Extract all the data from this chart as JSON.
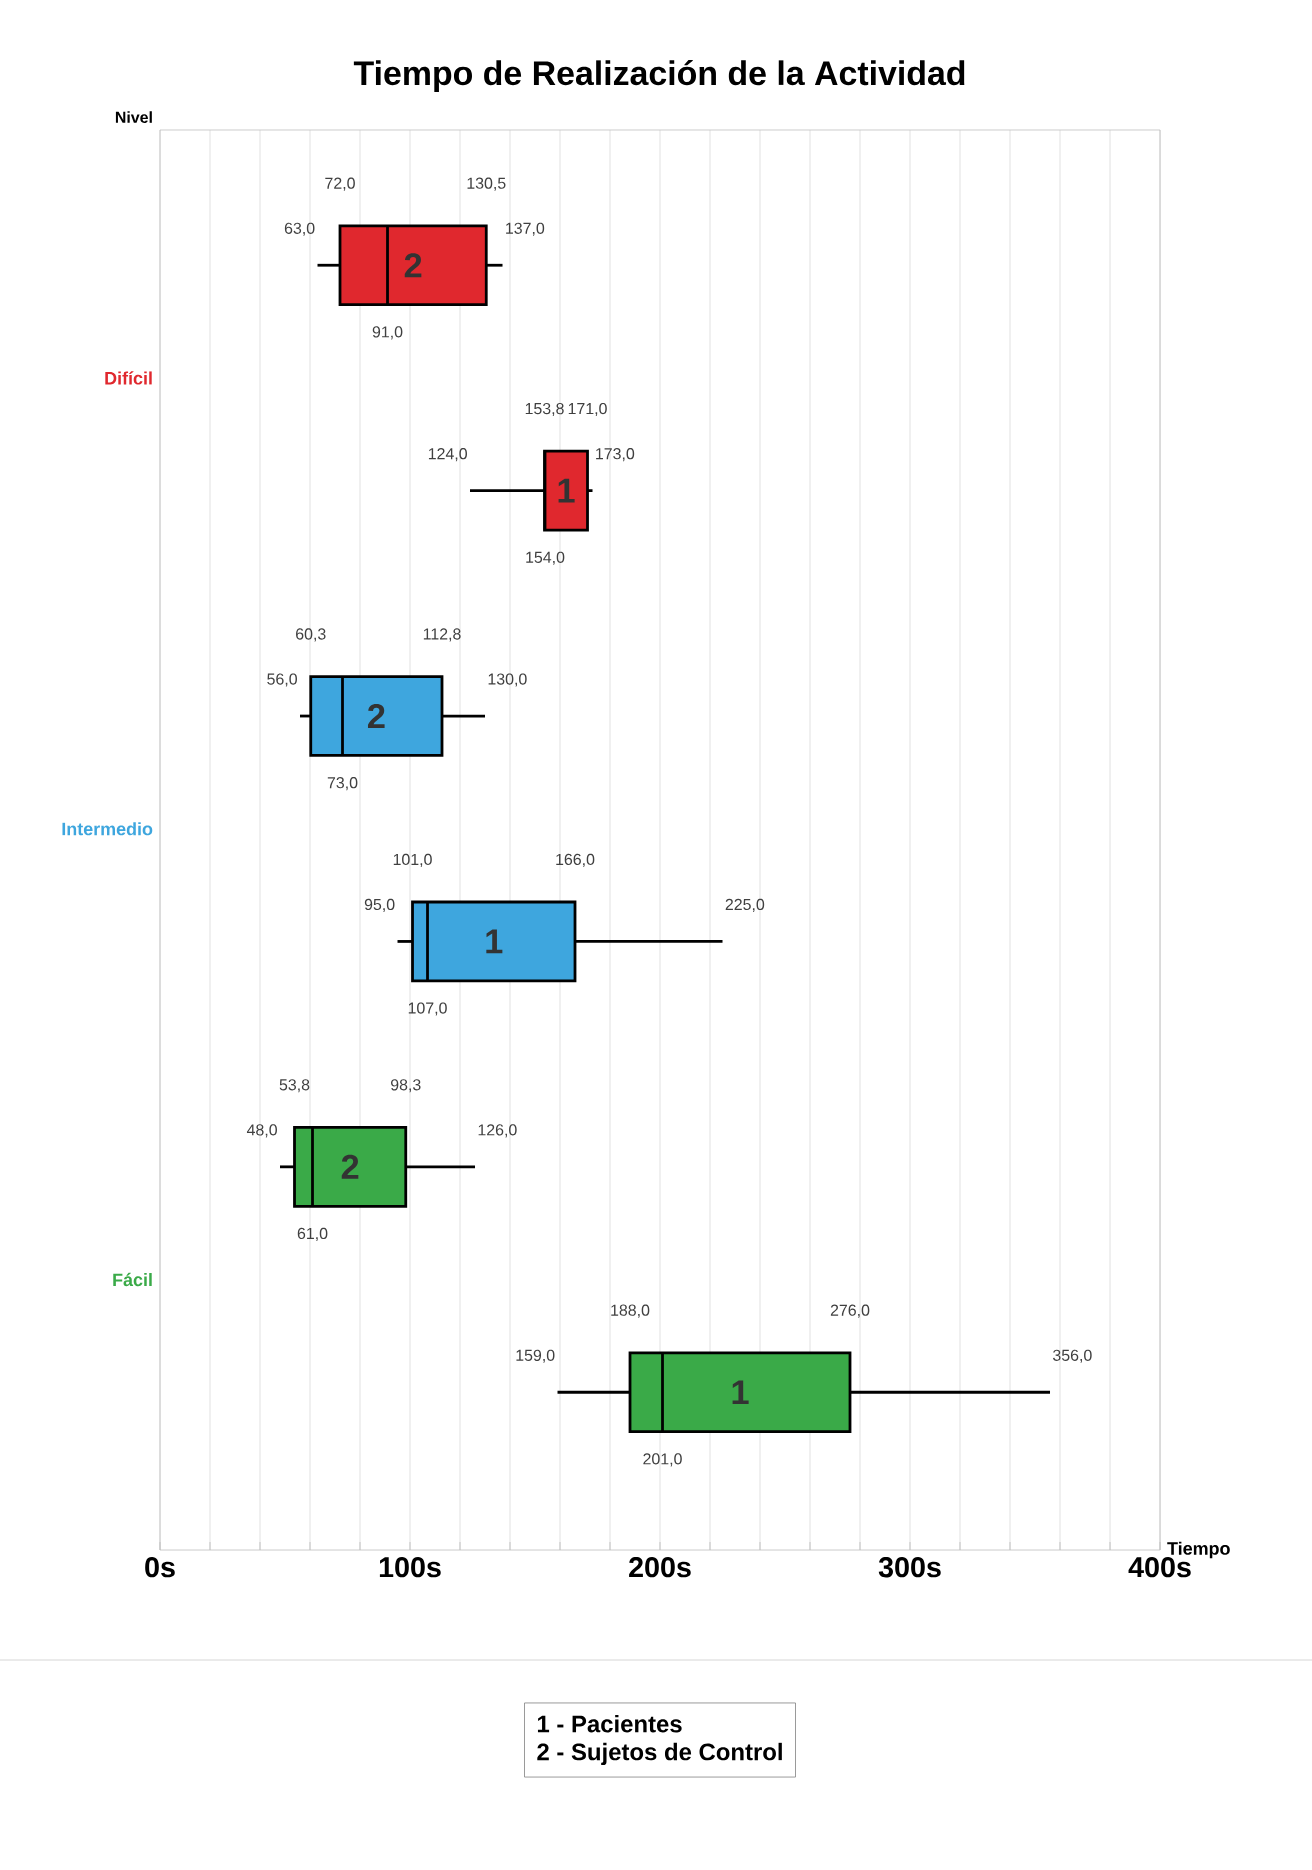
{
  "chart_data": {
    "type": "box",
    "orientation": "horizontal",
    "title": "Tiempo de Realización de la Actividad",
    "xlabel": "Tiempo",
    "ylabel": "Nivel",
    "categories": [
      "Difícil",
      "Intermedio",
      "Fácil"
    ],
    "series": [
      {
        "color": "#000000",
        "colors": [
          "#e0282e",
          "#3ea6de",
          "#3aaa48"
        ],
        "boxes": [
          {
            "low": 124,
            "q1": 153.8,
            "median": 154,
            "q3": 171,
            "high": 173
          },
          {
            "low": 95,
            "q1": 101,
            "median": 107,
            "q3": 166,
            "high": 225
          },
          {
            "low": 159,
            "q1": 188,
            "median": 201,
            "q3": 276,
            "high": 356
          }
        ]
      },
      {
        "color": "#000000",
        "colors": [
          "#e0282e",
          "#3ea6de",
          "#3aaa48"
        ],
        "boxes": [
          {
            "low": 63,
            "q1": 72,
            "median": 91,
            "q3": 130.5,
            "high": 137
          },
          {
            "low": 56,
            "q1": 60.3,
            "median": 73,
            "q3": 112.8,
            "high": 130
          },
          {
            "low": 48,
            "q1": 53.8,
            "median": 61,
            "q3": 98.3,
            "high": 126
          }
        ]
      }
    ],
    "xlim": [
      0,
      400
    ],
    "xticks": [
      {
        "value": 0,
        "label": "0s"
      },
      {
        "value": 20,
        "label": null
      },
      {
        "value": 40,
        "label": null
      },
      {
        "value": 60,
        "label": null
      },
      {
        "value": 80,
        "label": null
      },
      {
        "value": 100,
        "label": "100s"
      },
      {
        "value": 120,
        "label": null
      },
      {
        "value": 140,
        "label": null
      },
      {
        "value": 160,
        "label": null
      },
      {
        "value": 180,
        "label": null
      },
      {
        "value": 200,
        "label": "200s"
      },
      {
        "value": 220,
        "label": null
      },
      {
        "value": 240,
        "label": null
      },
      {
        "value": 260,
        "label": null
      },
      {
        "value": 280,
        "label": null
      },
      {
        "value": 300,
        "label": "300s"
      },
      {
        "value": 320,
        "label": null
      },
      {
        "value": 340,
        "label": null
      },
      {
        "value": 360,
        "label": null
      },
      {
        "value": 380,
        "label": null
      },
      {
        "value": 400,
        "label": "400s"
      }
    ],
    "grid": "x",
    "annotations": [
      "63,0",
      "72,0",
      "91,0",
      "130,5",
      "137,0",
      "2",
      "124,0",
      "153,8",
      "154,0",
      "171,0",
      "173,0",
      "1",
      "56,0",
      "60,3",
      "73,0",
      "112,8",
      "130,0",
      "2",
      "95,0",
      "101,0",
      "107,0",
      "166,0",
      "225,0",
      "1",
      "48,0",
      "53,8",
      "61,0",
      "98,3",
      "126,0",
      "2",
      "159,0",
      "188,0",
      "201,0",
      "276,0",
      "356,0",
      "1",
      "1 - Pacientes",
      "2 - Sujetos de Control"
    ]
  }
}
